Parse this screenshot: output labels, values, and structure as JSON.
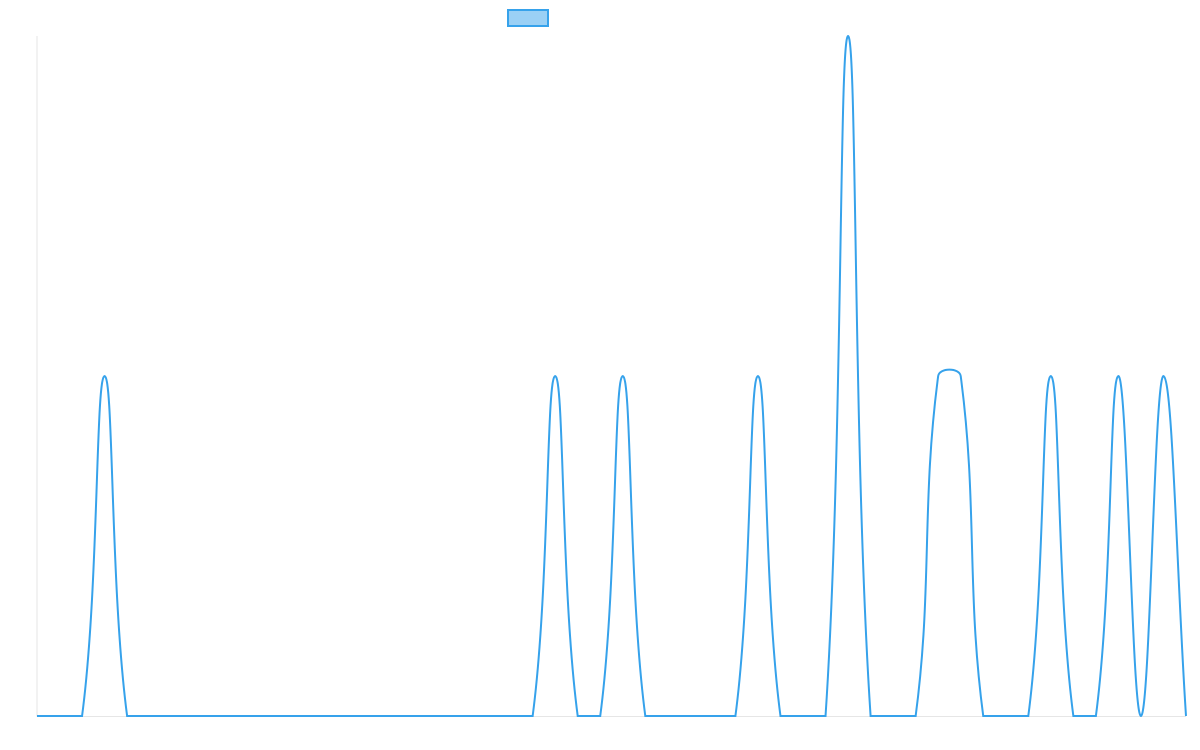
{
  "chart_data": {
    "type": "line",
    "categories": [
      null,
      null,
      null,
      null,
      null,
      null,
      null,
      null,
      null,
      null,
      null,
      null,
      null,
      null,
      null,
      null,
      null,
      null,
      null,
      null,
      null,
      null,
      null,
      null,
      null,
      null,
      null,
      null,
      null,
      null,
      null,
      null,
      null,
      null,
      null,
      null,
      null,
      null,
      null,
      null,
      null,
      null,
      null,
      null,
      null,
      null,
      null,
      null,
      null,
      null,
      null,
      null
    ],
    "series": [
      {
        "color": "#36a2eb",
        "values": [
          0,
          0,
          0,
          1,
          0,
          0,
          0,
          0,
          0,
          0,
          0,
          0,
          0,
          0,
          0,
          0,
          0,
          0,
          0,
          0,
          0,
          0,
          0,
          1,
          0,
          0,
          1,
          0,
          0,
          0,
          0,
          0,
          1,
          0,
          0,
          0,
          2,
          0,
          0,
          0,
          1,
          1,
          0,
          0,
          0,
          1,
          0,
          0,
          1,
          0,
          1,
          0
        ]
      }
    ],
    "ylim": [
      0,
      2
    ],
    "grid": false
  }
}
